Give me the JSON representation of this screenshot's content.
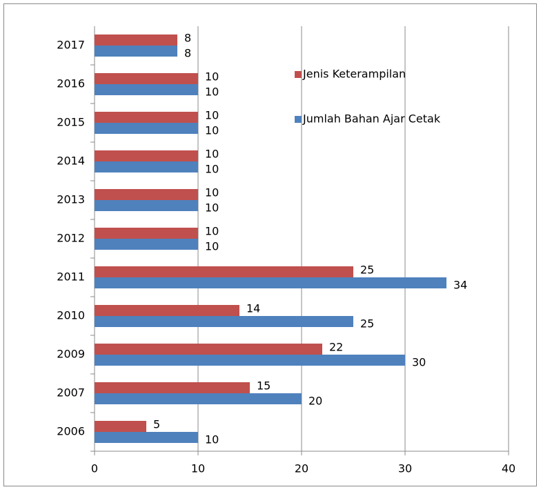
{
  "chart_data": {
    "type": "hbar",
    "categories": [
      "2006",
      "2007",
      "2009",
      "2010",
      "2011",
      "2012",
      "2013",
      "2014",
      "2015",
      "2016",
      "2017"
    ],
    "series": [
      {
        "name": "Jenis Keterampilan",
        "color": "#c0504d",
        "values": [
          5,
          15,
          22,
          14,
          25,
          10,
          10,
          10,
          10,
          10,
          8
        ]
      },
      {
        "name": "Jumlah Bahan Ajar Cetak",
        "color": "#4f81bd",
        "values": [
          10,
          20,
          30,
          25,
          34,
          10,
          10,
          10,
          10,
          10,
          8
        ]
      }
    ],
    "xlim": [
      0,
      40
    ],
    "xticks": [
      0,
      10,
      20,
      30,
      40
    ],
    "grid": true,
    "legend": "upper right"
  }
}
